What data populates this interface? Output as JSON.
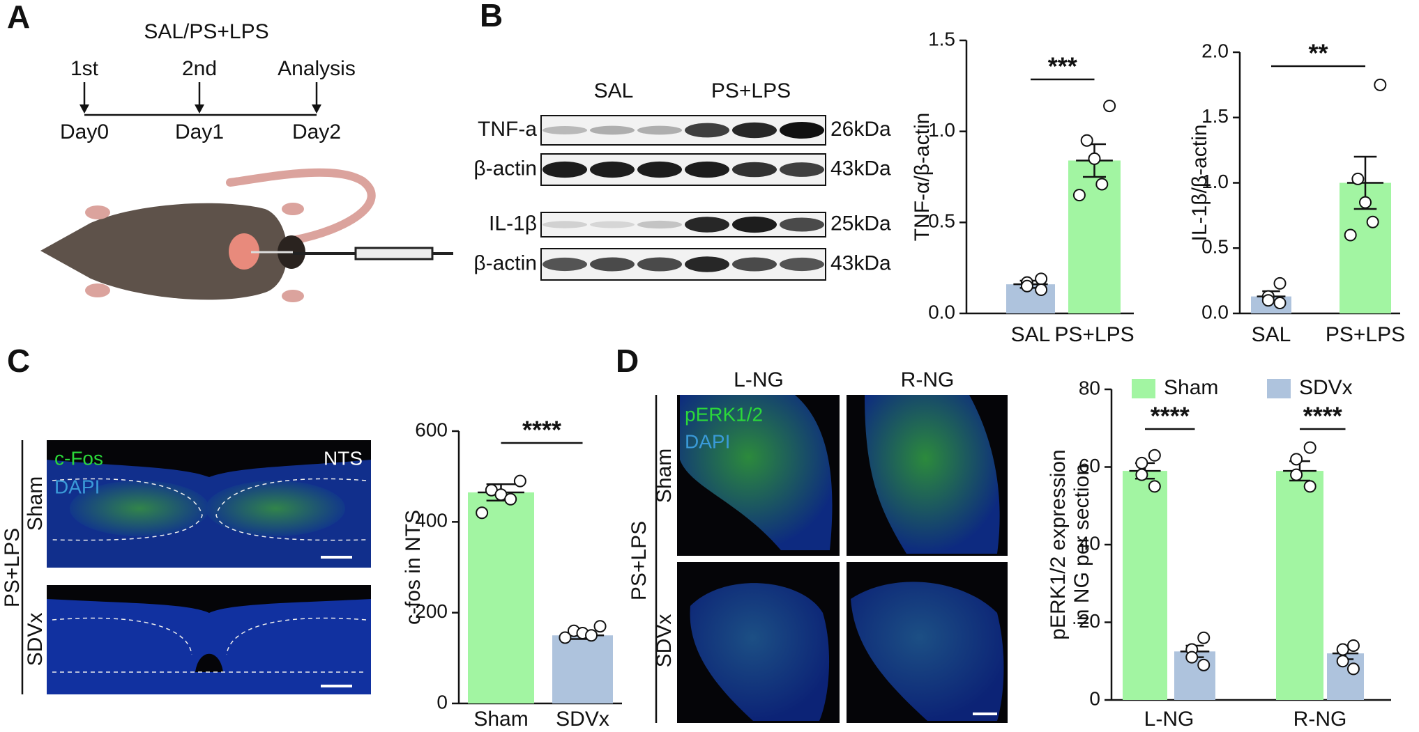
{
  "panel_labels": [
    "A",
    "B",
    "C",
    "D"
  ],
  "timeline": {
    "title": "SAL/PS+LPS",
    "events": [
      {
        "top": "1st",
        "bottom": "Day0"
      },
      {
        "top": "2nd",
        "bottom": "Day1"
      },
      {
        "top": "Analysis",
        "bottom": "Day2"
      }
    ]
  },
  "blot": {
    "groups": [
      "SAL",
      "PS+LPS"
    ],
    "rows": [
      {
        "label": "TNF-a",
        "size": "26kDa"
      },
      {
        "label": "β-actin",
        "size": "43kDa"
      },
      {
        "label": "IL-1β",
        "size": "25kDa"
      },
      {
        "label": "β-actin",
        "size": "43kDa"
      }
    ]
  },
  "panel_c_images": {
    "group": "PS+LPS",
    "rows": [
      "Sham",
      "SDVx"
    ],
    "stains": [
      "c-Fos",
      "DAPI"
    ],
    "region": "NTS"
  },
  "panel_d_images": {
    "group": "PS+LPS",
    "columns": [
      "L-NG",
      "R-NG"
    ],
    "rows": [
      "Sham",
      "SDVx"
    ],
    "stains": [
      "pERK1/2",
      "DAPI"
    ]
  },
  "chart_data": [
    {
      "type": "bar",
      "ylabel": "TNF-α/β-actin",
      "categories": [
        "SAL",
        "PS+LPS"
      ],
      "values": [
        0.16,
        0.84
      ],
      "errors": [
        0.02,
        0.09
      ],
      "colors": [
        "#aec3dd",
        "#a2f5a2"
      ],
      "points": [
        [
          0.19,
          0.17,
          0.15,
          0.13
        ],
        [
          1.14,
          0.95,
          0.85,
          0.71,
          0.65
        ]
      ],
      "significance": "***",
      "ylim": [
        0,
        1.5
      ],
      "yticks": [
        {
          "value": 0,
          "label": "0.0"
        },
        {
          "value": 0.5,
          "label": "0.5"
        },
        {
          "value": 1,
          "label": "1.0"
        },
        {
          "value": 1.5,
          "label": "1.5"
        }
      ]
    },
    {
      "type": "bar",
      "ylabel": "IL-1β/β-actin",
      "categories": [
        "SAL",
        "PS+LPS"
      ],
      "values": [
        0.13,
        1.0
      ],
      "errors": [
        0.04,
        0.2
      ],
      "colors": [
        "#aec3dd",
        "#a2f5a2"
      ],
      "points": [
        [
          0.23,
          0.13,
          0.1,
          0.08
        ],
        [
          1.75,
          1.03,
          0.85,
          0.7,
          0.6
        ]
      ],
      "significance": "**",
      "ylim": [
        0,
        2
      ],
      "yticks": [
        {
          "value": 0,
          "label": "0.0"
        },
        {
          "value": 0.5,
          "label": "0.5"
        },
        {
          "value": 1,
          "label": "1.0"
        },
        {
          "value": 1.5,
          "label": "1.5"
        },
        {
          "value": 2,
          "label": "2.0"
        }
      ]
    },
    {
      "type": "bar",
      "ylabel": "c-fos in NTS",
      "categories": [
        "Sham",
        "SDVx"
      ],
      "values": [
        465,
        150
      ],
      "errors": [
        18,
        8
      ],
      "colors": [
        "#a2f5a2",
        "#aec3dd"
      ],
      "points": [
        [
          490,
          470,
          460,
          450,
          420
        ],
        [
          170,
          160,
          155,
          150,
          145
        ]
      ],
      "significance": "****",
      "ylim": [
        0,
        600
      ],
      "yticks": [
        0,
        200,
        400,
        600
      ]
    },
    {
      "type": "grouped_bar",
      "ylabel": [
        "pERK1/2 expression",
        "in NG per section"
      ],
      "categories": [
        "L-NG",
        "R-NG"
      ],
      "series": [
        {
          "name": "Sham",
          "color": "#a2f5a2",
          "values": [
            59,
            59
          ],
          "errors": [
            2,
            2.5
          ],
          "points": [
            [
              63,
              61,
              58,
              55
            ],
            [
              65,
              62,
              58,
              55
            ]
          ]
        },
        {
          "name": "SDVx",
          "color": "#aec3dd",
          "values": [
            12.5,
            12
          ],
          "errors": [
            1.5,
            1.5
          ],
          "points": [
            [
              16,
              13,
              11,
              9
            ],
            [
              14,
              13,
              10,
              8
            ]
          ]
        }
      ],
      "significance": [
        "****",
        "****"
      ],
      "ylim": [
        0,
        80
      ],
      "yticks": [
        0,
        20,
        40,
        60,
        80
      ]
    }
  ]
}
